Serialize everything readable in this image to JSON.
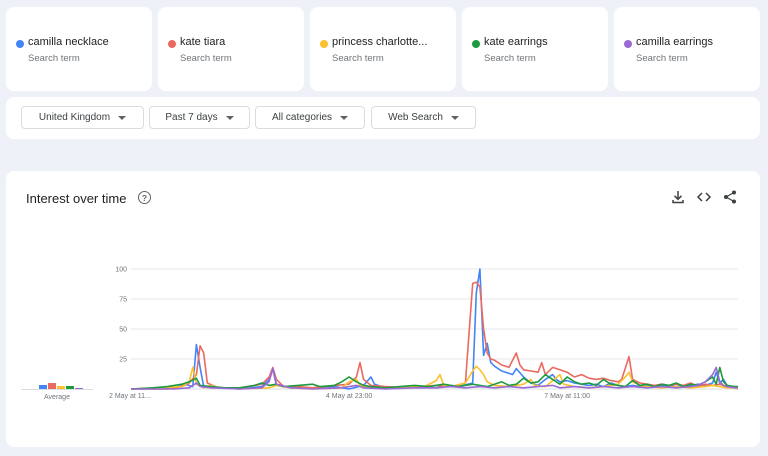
{
  "terms": [
    {
      "name": "camilla necklace",
      "sub": "Search term",
      "color": "#4285f4"
    },
    {
      "name": "kate tiara",
      "sub": "Search term",
      "color": "#ea6a60"
    },
    {
      "name": "princess charlotte...",
      "sub": "Search term",
      "color": "#fbc02d"
    },
    {
      "name": "kate earrings",
      "sub": "Search term",
      "color": "#1e9a3e"
    },
    {
      "name": "camilla earrings",
      "sub": "Search term",
      "color": "#9a6ad6"
    }
  ],
  "filters": {
    "region": "United Kingdom",
    "time": "Past 7 days",
    "category": "All categories",
    "search_type": "Web Search"
  },
  "panel": {
    "title": "Interest over time",
    "help_icon": "help-circle-icon",
    "tools": [
      "download-icon",
      "embed-code-icon",
      "share-icon"
    ],
    "average_label": "Average"
  },
  "average_values": [
    4,
    6,
    3,
    3,
    1
  ],
  "chart_data": {
    "type": "line",
    "title": "",
    "xlabel": "",
    "ylabel": "",
    "ylim": [
      0,
      100
    ],
    "y_ticks": [
      "100",
      "75",
      "50",
      "25"
    ],
    "x_tick_labels": [
      "2 May at 11...",
      "4 May at 23:00",
      "7 May at 11:00"
    ],
    "x_tick_positions": [
      0,
      60,
      120
    ],
    "n_points": 168,
    "series": [
      {
        "name": "camilla necklace",
        "color": "#4285f4",
        "points": [
          [
            0,
            0
          ],
          [
            12,
            1
          ],
          [
            15,
            4
          ],
          [
            17,
            2
          ],
          [
            18,
            37
          ],
          [
            19,
            18
          ],
          [
            20,
            2
          ],
          [
            24,
            1
          ],
          [
            30,
            0
          ],
          [
            36,
            2
          ],
          [
            38,
            8
          ],
          [
            39,
            17
          ],
          [
            40,
            3
          ],
          [
            44,
            1
          ],
          [
            50,
            1
          ],
          [
            56,
            2
          ],
          [
            60,
            0
          ],
          [
            64,
            3
          ],
          [
            66,
            10
          ],
          [
            67,
            4
          ],
          [
            70,
            1
          ],
          [
            78,
            2
          ],
          [
            84,
            1
          ],
          [
            88,
            3
          ],
          [
            90,
            2
          ],
          [
            94,
            5
          ],
          [
            95,
            80
          ],
          [
            96,
            100
          ],
          [
            97,
            28
          ],
          [
            98,
            38
          ],
          [
            99,
            22
          ],
          [
            100,
            19
          ],
          [
            102,
            15
          ],
          [
            104,
            13
          ],
          [
            105,
            12
          ],
          [
            106,
            17
          ],
          [
            108,
            10
          ],
          [
            110,
            5
          ],
          [
            112,
            3
          ],
          [
            114,
            8
          ],
          [
            116,
            12
          ],
          [
            117,
            8
          ],
          [
            118,
            6
          ],
          [
            120,
            7
          ],
          [
            122,
            5
          ],
          [
            124,
            4
          ],
          [
            126,
            3
          ],
          [
            128,
            4
          ],
          [
            130,
            2
          ],
          [
            132,
            5
          ],
          [
            134,
            3
          ],
          [
            136,
            2
          ],
          [
            138,
            3
          ],
          [
            140,
            2
          ],
          [
            142,
            3
          ],
          [
            144,
            2
          ],
          [
            146,
            3
          ],
          [
            148,
            2
          ],
          [
            150,
            4
          ],
          [
            152,
            2
          ],
          [
            154,
            3
          ],
          [
            156,
            4
          ],
          [
            158,
            3
          ],
          [
            160,
            5
          ],
          [
            161,
            14
          ],
          [
            162,
            5
          ],
          [
            163,
            8
          ],
          [
            164,
            3
          ],
          [
            166,
            1
          ],
          [
            167,
            1
          ]
        ]
      },
      {
        "name": "kate tiara",
        "color": "#ea6a60",
        "points": [
          [
            0,
            0
          ],
          [
            10,
            0
          ],
          [
            14,
            2
          ],
          [
            16,
            5
          ],
          [
            18,
            12
          ],
          [
            19,
            36
          ],
          [
            20,
            30
          ],
          [
            21,
            5
          ],
          [
            24,
            1
          ],
          [
            30,
            1
          ],
          [
            34,
            3
          ],
          [
            36,
            4
          ],
          [
            38,
            10
          ],
          [
            39,
            18
          ],
          [
            40,
            8
          ],
          [
            42,
            2
          ],
          [
            46,
            2
          ],
          [
            50,
            1
          ],
          [
            56,
            3
          ],
          [
            60,
            4
          ],
          [
            62,
            10
          ],
          [
            63,
            22
          ],
          [
            64,
            8
          ],
          [
            66,
            3
          ],
          [
            70,
            2
          ],
          [
            76,
            1
          ],
          [
            80,
            2
          ],
          [
            84,
            3
          ],
          [
            88,
            2
          ],
          [
            92,
            5
          ],
          [
            94,
            88
          ],
          [
            95,
            89
          ],
          [
            96,
            85
          ],
          [
            97,
            50
          ],
          [
            98,
            30
          ],
          [
            99,
            25
          ],
          [
            100,
            24
          ],
          [
            102,
            20
          ],
          [
            104,
            18
          ],
          [
            106,
            30
          ],
          [
            107,
            20
          ],
          [
            108,
            16
          ],
          [
            110,
            15
          ],
          [
            112,
            14
          ],
          [
            113,
            22
          ],
          [
            114,
            12
          ],
          [
            116,
            18
          ],
          [
            118,
            16
          ],
          [
            120,
            14
          ],
          [
            122,
            10
          ],
          [
            124,
            12
          ],
          [
            126,
            9
          ],
          [
            128,
            8
          ],
          [
            130,
            9
          ],
          [
            132,
            7
          ],
          [
            134,
            6
          ],
          [
            135,
            8
          ],
          [
            137,
            27
          ],
          [
            138,
            8
          ],
          [
            140,
            5
          ],
          [
            142,
            4
          ],
          [
            144,
            3
          ],
          [
            146,
            4
          ],
          [
            148,
            3
          ],
          [
            150,
            4
          ],
          [
            152,
            3
          ],
          [
            154,
            5
          ],
          [
            156,
            2
          ],
          [
            158,
            4
          ],
          [
            160,
            3
          ],
          [
            162,
            4
          ],
          [
            164,
            2
          ],
          [
            166,
            2
          ],
          [
            167,
            1
          ]
        ]
      },
      {
        "name": "princess charlotte...",
        "color": "#fbc02d",
        "points": [
          [
            0,
            0
          ],
          [
            14,
            2
          ],
          [
            16,
            6
          ],
          [
            17,
            18
          ],
          [
            18,
            4
          ],
          [
            20,
            1
          ],
          [
            22,
            3
          ],
          [
            24,
            1
          ],
          [
            30,
            0
          ],
          [
            38,
            1
          ],
          [
            40,
            3
          ],
          [
            44,
            1
          ],
          [
            50,
            0
          ],
          [
            58,
            1
          ],
          [
            60,
            6
          ],
          [
            62,
            8
          ],
          [
            63,
            3
          ],
          [
            66,
            1
          ],
          [
            72,
            1
          ],
          [
            76,
            2
          ],
          [
            80,
            1
          ],
          [
            84,
            7
          ],
          [
            85,
            12
          ],
          [
            86,
            3
          ],
          [
            88,
            2
          ],
          [
            92,
            5
          ],
          [
            94,
            15
          ],
          [
            95,
            19
          ],
          [
            96,
            16
          ],
          [
            97,
            12
          ],
          [
            98,
            6
          ],
          [
            100,
            3
          ],
          [
            104,
            2
          ],
          [
            108,
            4
          ],
          [
            110,
            8
          ],
          [
            111,
            3
          ],
          [
            114,
            2
          ],
          [
            118,
            12
          ],
          [
            119,
            4
          ],
          [
            122,
            2
          ],
          [
            126,
            1
          ],
          [
            130,
            2
          ],
          [
            134,
            4
          ],
          [
            136,
            10
          ],
          [
            137,
            14
          ],
          [
            138,
            6
          ],
          [
            140,
            3
          ],
          [
            142,
            2
          ],
          [
            146,
            1
          ],
          [
            150,
            2
          ],
          [
            154,
            1
          ],
          [
            158,
            2
          ],
          [
            160,
            3
          ],
          [
            162,
            2
          ],
          [
            164,
            1
          ],
          [
            166,
            1
          ],
          [
            167,
            0
          ]
        ]
      },
      {
        "name": "kate earrings",
        "color": "#1e9a3e",
        "points": [
          [
            0,
            0
          ],
          [
            6,
            1
          ],
          [
            10,
            2
          ],
          [
            14,
            4
          ],
          [
            16,
            6
          ],
          [
            18,
            9
          ],
          [
            19,
            3
          ],
          [
            22,
            2
          ],
          [
            26,
            1
          ],
          [
            30,
            1
          ],
          [
            34,
            3
          ],
          [
            36,
            5
          ],
          [
            38,
            3
          ],
          [
            40,
            4
          ],
          [
            42,
            2
          ],
          [
            46,
            3
          ],
          [
            50,
            4
          ],
          [
            52,
            2
          ],
          [
            56,
            3
          ],
          [
            58,
            6
          ],
          [
            60,
            10
          ],
          [
            62,
            6
          ],
          [
            64,
            3
          ],
          [
            66,
            2
          ],
          [
            70,
            1
          ],
          [
            74,
            2
          ],
          [
            78,
            3
          ],
          [
            82,
            2
          ],
          [
            86,
            4
          ],
          [
            88,
            3
          ],
          [
            90,
            2
          ],
          [
            94,
            4
          ],
          [
            96,
            3
          ],
          [
            98,
            2
          ],
          [
            100,
            4
          ],
          [
            102,
            6
          ],
          [
            104,
            3
          ],
          [
            106,
            4
          ],
          [
            108,
            9
          ],
          [
            110,
            5
          ],
          [
            112,
            6
          ],
          [
            114,
            12
          ],
          [
            116,
            8
          ],
          [
            118,
            4
          ],
          [
            120,
            10
          ],
          [
            122,
            6
          ],
          [
            124,
            4
          ],
          [
            126,
            5
          ],
          [
            128,
            3
          ],
          [
            130,
            8
          ],
          [
            132,
            4
          ],
          [
            134,
            3
          ],
          [
            136,
            2
          ],
          [
            138,
            7
          ],
          [
            140,
            3
          ],
          [
            142,
            4
          ],
          [
            144,
            2
          ],
          [
            146,
            4
          ],
          [
            148,
            3
          ],
          [
            150,
            5
          ],
          [
            152,
            2
          ],
          [
            154,
            4
          ],
          [
            156,
            3
          ],
          [
            158,
            6
          ],
          [
            160,
            10
          ],
          [
            161,
            4
          ],
          [
            162,
            18
          ],
          [
            163,
            6
          ],
          [
            164,
            3
          ],
          [
            166,
            2
          ],
          [
            167,
            2
          ]
        ]
      },
      {
        "name": "camilla earrings",
        "color": "#9a6ad6",
        "points": [
          [
            0,
            0
          ],
          [
            12,
            0
          ],
          [
            16,
            1
          ],
          [
            18,
            5
          ],
          [
            19,
            2
          ],
          [
            22,
            1
          ],
          [
            30,
            0
          ],
          [
            36,
            1
          ],
          [
            38,
            6
          ],
          [
            39,
            17
          ],
          [
            40,
            4
          ],
          [
            44,
            1
          ],
          [
            50,
            0
          ],
          [
            58,
            1
          ],
          [
            62,
            3
          ],
          [
            64,
            1
          ],
          [
            70,
            0
          ],
          [
            78,
            1
          ],
          [
            84,
            1
          ],
          [
            88,
            2
          ],
          [
            92,
            1
          ],
          [
            96,
            2
          ],
          [
            100,
            1
          ],
          [
            104,
            2
          ],
          [
            108,
            1
          ],
          [
            112,
            2
          ],
          [
            116,
            3
          ],
          [
            118,
            1
          ],
          [
            122,
            2
          ],
          [
            126,
            1
          ],
          [
            130,
            2
          ],
          [
            134,
            1
          ],
          [
            138,
            2
          ],
          [
            142,
            1
          ],
          [
            146,
            2
          ],
          [
            150,
            1
          ],
          [
            154,
            2
          ],
          [
            156,
            3
          ],
          [
            158,
            6
          ],
          [
            160,
            12
          ],
          [
            161,
            18
          ],
          [
            162,
            6
          ],
          [
            163,
            3
          ],
          [
            164,
            2
          ],
          [
            166,
            1
          ],
          [
            167,
            1
          ]
        ]
      }
    ]
  }
}
